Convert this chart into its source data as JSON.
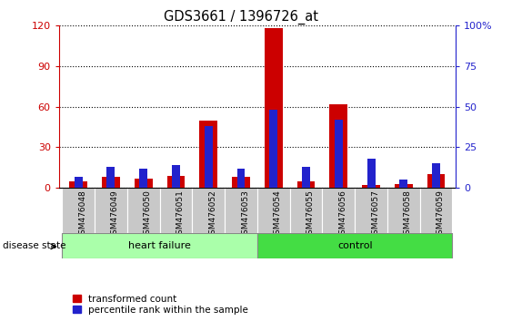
{
  "title": "GDS3661 / 1396726_at",
  "samples": [
    "GSM476048",
    "GSM476049",
    "GSM476050",
    "GSM476051",
    "GSM476052",
    "GSM476053",
    "GSM476054",
    "GSM476055",
    "GSM476056",
    "GSM476057",
    "GSM476058",
    "GSM476059"
  ],
  "red_values": [
    5,
    8,
    7,
    9,
    50,
    8,
    118,
    5,
    62,
    2,
    3,
    10
  ],
  "blue_values_pct": [
    7,
    13,
    12,
    14,
    38,
    12,
    48,
    13,
    42,
    18,
    5,
    15
  ],
  "ylim_left": [
    0,
    120
  ],
  "ylim_right": [
    0,
    100
  ],
  "yticks_left": [
    0,
    30,
    60,
    90,
    120
  ],
  "yticks_right": [
    0,
    25,
    50,
    75,
    100
  ],
  "ytick_labels_right": [
    "0",
    "25",
    "50",
    "75",
    "100%"
  ],
  "heart_failure_indices": [
    0,
    1,
    2,
    3,
    4,
    5
  ],
  "control_indices": [
    6,
    7,
    8,
    9,
    10,
    11
  ],
  "heart_failure_label": "heart failure",
  "control_label": "control",
  "disease_state_label": "disease state",
  "legend_red": "transformed count",
  "legend_blue": "percentile rank within the sample",
  "red_bar_width": 0.55,
  "blue_bar_width": 0.25,
  "red_color": "#CC0000",
  "blue_color": "#2222CC",
  "heart_failure_bg": "#AAFFAA",
  "control_bg": "#44DD44",
  "tick_bg": "#C8C8C8",
  "left_axis_color": "#CC0000",
  "right_axis_color": "#2222CC"
}
